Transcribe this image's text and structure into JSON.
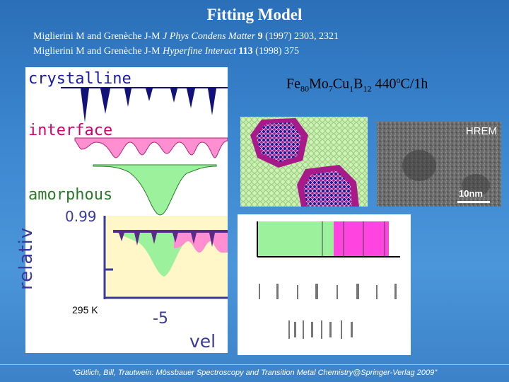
{
  "title": "Fitting Model",
  "references": [
    {
      "authors": "Miglierini M and Grenèche J-M ",
      "journal": "J Phys Condens Matter",
      "volume": "9",
      "rest": " (1997) 2303, 2321"
    },
    {
      "authors": "Miglierini M and Grenèche J-M ",
      "journal": "Hyperfine Interact",
      "volume": "113",
      "rest": " (1998) 375"
    }
  ],
  "labels": {
    "crystalline": "crystalline",
    "interface": "interface",
    "amorphous": "amorphous",
    "relative": "relativ",
    "fraction": "0.99",
    "temperature": "295 K",
    "tick": "-5",
    "velocity": "vel"
  },
  "composition": {
    "el1": "Fe",
    "n1": "80",
    "el2": "Mo",
    "n2": "7",
    "el3": "Cu",
    "n3": "1",
    "el4": "B",
    "n4": "12",
    "anneal": " 440",
    "deg": "o",
    "anneal_unit": "C/1h"
  },
  "hrem": {
    "label": "HREM",
    "scale": "10nm"
  },
  "footer": "\"Gütlich, Bill, Trautwein: Mössbauer Spectroscopy and Transition Metal Chemistry@Springer-Verlag 2009\"",
  "colors": {
    "crystalline": "#12127a",
    "interface": "#ff8fd0",
    "amorphous": "#9cf29c",
    "background": "#3b86cf"
  }
}
